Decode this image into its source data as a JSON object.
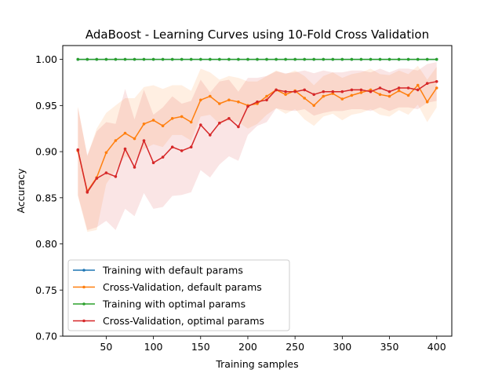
{
  "chart_data": {
    "type": "line",
    "title": "AdaBoost - Learning Curves using 10-Fold Cross Validation",
    "xlabel": "Training samples",
    "ylabel": "Accuracy",
    "xlim": [
      4,
      416
    ],
    "ylim": [
      0.7,
      1.015
    ],
    "xticks": [
      50,
      100,
      150,
      200,
      250,
      300,
      350,
      400
    ],
    "xtick_labels": [
      "50",
      "100",
      "150",
      "200",
      "250",
      "300",
      "350",
      "400"
    ],
    "yticks": [
      0.7,
      0.75,
      0.8,
      0.85,
      0.9,
      0.95,
      1.0
    ],
    "ytick_labels": [
      "0.70",
      "0.75",
      "0.80",
      "0.85",
      "0.90",
      "0.95",
      "1.00"
    ],
    "legend_position": "lower-left",
    "grid": false,
    "x": [
      20,
      30,
      40,
      50,
      60,
      70,
      80,
      90,
      100,
      110,
      120,
      130,
      140,
      150,
      160,
      170,
      180,
      190,
      200,
      210,
      220,
      230,
      240,
      250,
      260,
      270,
      280,
      290,
      300,
      310,
      320,
      330,
      340,
      350,
      360,
      370,
      380,
      390,
      400
    ],
    "series": [
      {
        "name": "Training with default params",
        "color": "#1f77b4",
        "values": [
          1,
          1,
          1,
          1,
          1,
          1,
          1,
          1,
          1,
          1,
          1,
          1,
          1,
          1,
          1,
          1,
          1,
          1,
          1,
          1,
          1,
          1,
          1,
          1,
          1,
          1,
          1,
          1,
          1,
          1,
          1,
          1,
          1,
          1,
          1,
          1,
          1,
          1,
          1
        ]
      },
      {
        "name": "Cross-Validation, default params",
        "color": "#ff7f0e",
        "values": [
          0.901,
          0.857,
          0.872,
          0.899,
          0.912,
          0.92,
          0.914,
          0.93,
          0.934,
          0.928,
          0.936,
          0.938,
          0.932,
          0.956,
          0.96,
          0.952,
          0.956,
          0.954,
          0.95,
          0.952,
          0.96,
          0.967,
          0.962,
          0.966,
          0.958,
          0.95,
          0.96,
          0.963,
          0.957,
          0.961,
          0.964,
          0.967,
          0.962,
          0.96,
          0.966,
          0.961,
          0.972,
          0.954,
          0.969
        ],
        "lower": [
          0.852,
          0.813,
          0.815,
          0.865,
          0.88,
          0.895,
          0.89,
          0.903,
          0.908,
          0.905,
          0.918,
          0.918,
          0.912,
          0.938,
          0.94,
          0.93,
          0.934,
          0.932,
          0.925,
          0.93,
          0.94,
          0.947,
          0.941,
          0.946,
          0.935,
          0.928,
          0.938,
          0.941,
          0.934,
          0.94,
          0.942,
          0.946,
          0.94,
          0.938,
          0.945,
          0.94,
          0.951,
          0.932,
          0.948
        ],
        "upper": [
          0.949,
          0.895,
          0.925,
          0.942,
          0.95,
          0.958,
          0.958,
          0.97,
          0.972,
          0.968,
          0.972,
          0.972,
          0.966,
          0.99,
          0.986,
          0.978,
          0.982,
          0.98,
          0.976,
          0.976,
          0.982,
          0.988,
          0.984,
          0.988,
          0.982,
          0.972,
          0.982,
          0.986,
          0.98,
          0.984,
          0.986,
          0.99,
          0.984,
          0.983,
          0.988,
          0.984,
          0.993,
          0.978,
          0.992
        ]
      },
      {
        "name": "Training with optimal params",
        "color": "#2ca02c",
        "values": [
          1,
          1,
          1,
          1,
          1,
          1,
          1,
          1,
          1,
          1,
          1,
          1,
          1,
          1,
          1,
          1,
          1,
          1,
          1,
          1,
          1,
          1,
          1,
          1,
          1,
          1,
          1,
          1,
          1,
          1,
          1,
          1,
          1,
          1,
          1,
          1,
          1,
          1,
          1
        ]
      },
      {
        "name": "Cross-Validation, optimal params",
        "color": "#d62728",
        "values": [
          0.902,
          0.856,
          0.871,
          0.877,
          0.873,
          0.903,
          0.883,
          0.912,
          0.888,
          0.894,
          0.905,
          0.901,
          0.905,
          0.929,
          0.918,
          0.931,
          0.936,
          0.927,
          0.949,
          0.954,
          0.956,
          0.967,
          0.965,
          0.965,
          0.967,
          0.962,
          0.965,
          0.965,
          0.965,
          0.967,
          0.967,
          0.965,
          0.969,
          0.965,
          0.969,
          0.969,
          0.967,
          0.974,
          0.976
        ],
        "lower": [
          0.853,
          0.815,
          0.818,
          0.825,
          0.815,
          0.838,
          0.83,
          0.855,
          0.838,
          0.84,
          0.852,
          0.853,
          0.856,
          0.88,
          0.872,
          0.886,
          0.895,
          0.89,
          0.918,
          0.928,
          0.932,
          0.947,
          0.945,
          0.944,
          0.946,
          0.939,
          0.942,
          0.944,
          0.944,
          0.946,
          0.946,
          0.944,
          0.948,
          0.944,
          0.948,
          0.948,
          0.946,
          0.953,
          0.955
        ],
        "upper": [
          0.948,
          0.896,
          0.922,
          0.932,
          0.93,
          0.968,
          0.935,
          0.967,
          0.94,
          0.948,
          0.96,
          0.952,
          0.955,
          0.978,
          0.964,
          0.976,
          0.978,
          0.965,
          0.98,
          0.98,
          0.982,
          0.987,
          0.985,
          0.986,
          0.988,
          0.985,
          0.988,
          0.986,
          0.986,
          0.988,
          0.988,
          0.986,
          0.99,
          0.986,
          0.99,
          0.99,
          0.988,
          0.995,
          0.997
        ]
      }
    ]
  }
}
